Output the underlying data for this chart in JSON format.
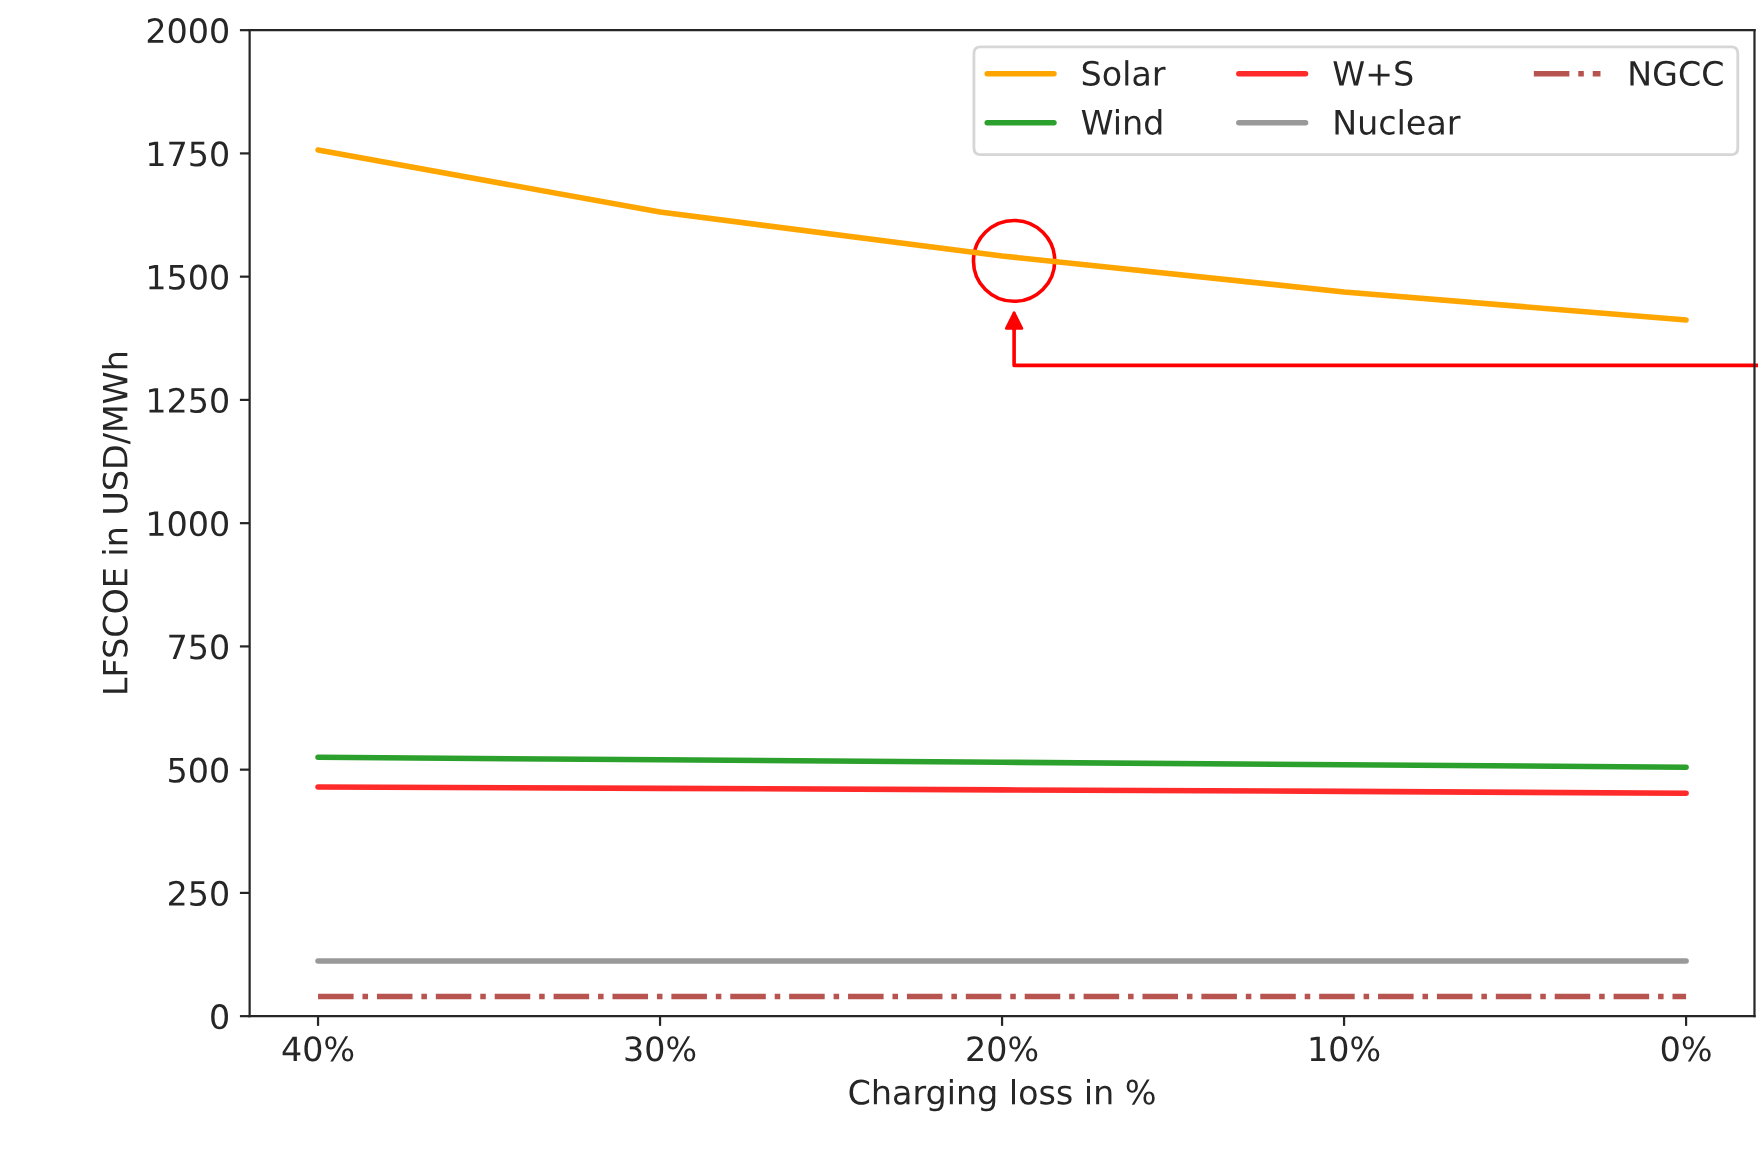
{
  "chart_data": {
    "type": "line",
    "xlabel": "Charging loss in %",
    "ylabel": "LFSCOE in USD/MWh",
    "x": [
      40,
      30,
      20,
      10,
      0
    ],
    "series": [
      {
        "name": "Solar",
        "color": "#ffa500",
        "values": [
          1757,
          1631,
          1542,
          1469,
          1412
        ]
      },
      {
        "name": "Wind",
        "color": "#2ca02c",
        "values": [
          525,
          520,
          515,
          510,
          505
        ]
      },
      {
        "name": "W+S",
        "color": "#ff2a2a",
        "values": [
          465,
          462,
          459,
          456,
          452
        ]
      },
      {
        "name": "Nuclear",
        "color": "#999999",
        "values": [
          112,
          112,
          112,
          112,
          112
        ]
      },
      {
        "name": "NGCC",
        "color": "#b85450",
        "values": [
          40,
          40,
          40,
          40,
          40
        ],
        "line_style": "dashdot"
      }
    ],
    "xlim": [
      42,
      -2
    ],
    "xticks": [
      {
        "value": 40,
        "label": "40%"
      },
      {
        "value": 30,
        "label": "30%"
      },
      {
        "value": 20,
        "label": "20%"
      },
      {
        "value": 10,
        "label": "10%"
      },
      {
        "value": 0,
        "label": "0%"
      }
    ],
    "ylim": [
      0,
      2000
    ],
    "yticks": [
      0,
      250,
      500,
      750,
      1000,
      1250,
      1500,
      1750,
      2000
    ],
    "grid": false,
    "legend": "top right",
    "marker": "none",
    "line_style": "solid"
  }
}
